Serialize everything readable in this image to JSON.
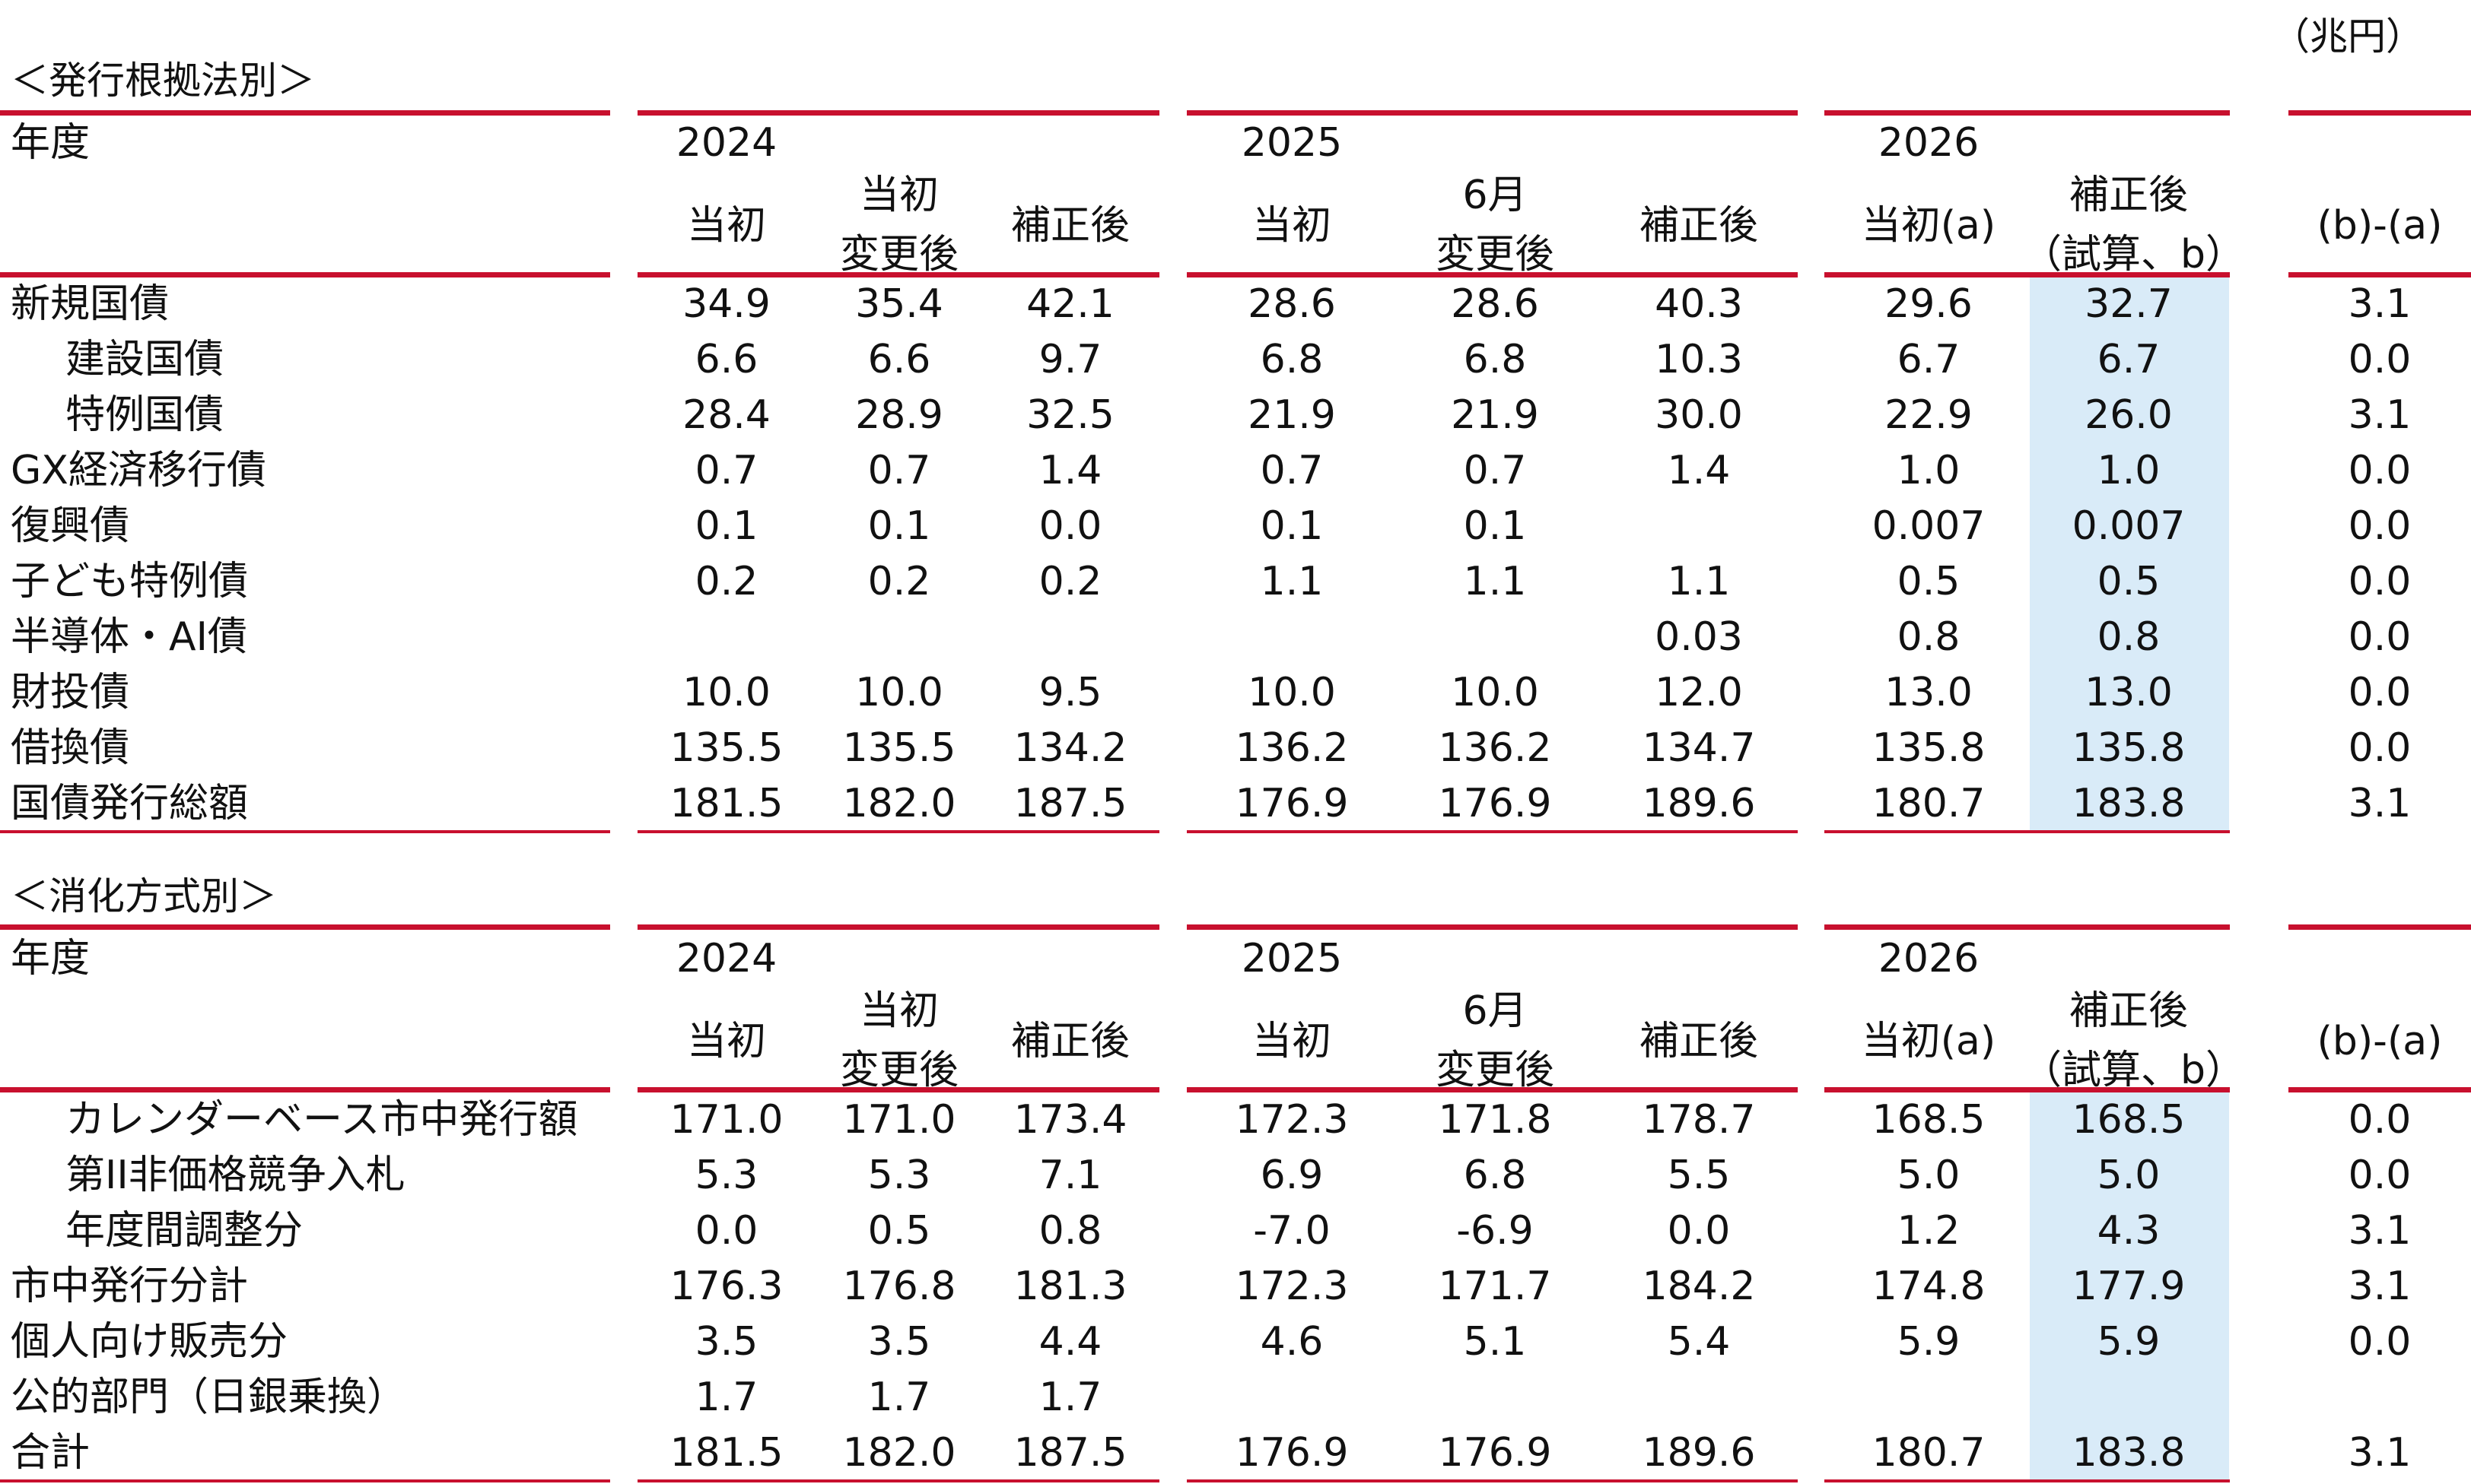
{
  "unit": "（兆円）",
  "tables": [
    {
      "title": "＜発行根拠法別＞",
      "year_label": "年度",
      "years": [
        "2024",
        "2025",
        "2026"
      ],
      "columns": [
        {
          "top": "当初",
          "bottom": ""
        },
        {
          "top": "当初",
          "bottom": "変更後"
        },
        {
          "top": "補正後",
          "bottom": ""
        },
        {
          "top": "当初",
          "bottom": ""
        },
        {
          "top": "6月",
          "bottom": "変更後"
        },
        {
          "top": "補正後",
          "bottom": ""
        },
        {
          "top": "当初(a)",
          "bottom": ""
        },
        {
          "top": "補正後",
          "bottom": "（試算、b）"
        },
        {
          "top": "(b)-(a)",
          "bottom": ""
        }
      ],
      "rows": [
        {
          "label": "新規国債",
          "indent": false,
          "values": [
            "34.9",
            "35.4",
            "42.1",
            "28.6",
            "28.6",
            "40.3",
            "29.6",
            "32.7",
            "3.1"
          ]
        },
        {
          "label": "建設国債",
          "indent": true,
          "values": [
            "6.6",
            "6.6",
            "9.7",
            "6.8",
            "6.8",
            "10.3",
            "6.7",
            "6.7",
            "0.0"
          ]
        },
        {
          "label": "特例国債",
          "indent": true,
          "values": [
            "28.4",
            "28.9",
            "32.5",
            "21.9",
            "21.9",
            "30.0",
            "22.9",
            "26.0",
            "3.1"
          ]
        },
        {
          "label": "GX経済移行債",
          "indent": false,
          "values": [
            "0.7",
            "0.7",
            "1.4",
            "0.7",
            "0.7",
            "1.4",
            "1.0",
            "1.0",
            "0.0"
          ]
        },
        {
          "label": "復興債",
          "indent": false,
          "values": [
            "0.1",
            "0.1",
            "0.0",
            "0.1",
            "0.1",
            "",
            "0.007",
            "0.007",
            "0.0"
          ]
        },
        {
          "label": "子ども特例債",
          "indent": false,
          "values": [
            "0.2",
            "0.2",
            "0.2",
            "1.1",
            "1.1",
            "1.1",
            "0.5",
            "0.5",
            "0.0"
          ]
        },
        {
          "label": "半導体・AI債",
          "indent": false,
          "values": [
            "",
            "",
            "",
            "",
            "",
            "0.03",
            "0.8",
            "0.8",
            "0.0"
          ]
        },
        {
          "label": "財投債",
          "indent": false,
          "values": [
            "10.0",
            "10.0",
            "9.5",
            "10.0",
            "10.0",
            "12.0",
            "13.0",
            "13.0",
            "0.0"
          ]
        },
        {
          "label": "借換債",
          "indent": false,
          "values": [
            "135.5",
            "135.5",
            "134.2",
            "136.2",
            "136.2",
            "134.7",
            "135.8",
            "135.8",
            "0.0"
          ]
        },
        {
          "label": "国債発行総額",
          "indent": false,
          "values": [
            "181.5",
            "182.0",
            "187.5",
            "176.9",
            "176.9",
            "189.6",
            "180.7",
            "183.8",
            "3.1"
          ]
        }
      ]
    },
    {
      "title": "＜消化方式別＞",
      "year_label": "年度",
      "years": [
        "2024",
        "2025",
        "2026"
      ],
      "columns": [
        {
          "top": "当初",
          "bottom": ""
        },
        {
          "top": "当初",
          "bottom": "変更後"
        },
        {
          "top": "補正後",
          "bottom": ""
        },
        {
          "top": "当初",
          "bottom": ""
        },
        {
          "top": "6月",
          "bottom": "変更後"
        },
        {
          "top": "補正後",
          "bottom": ""
        },
        {
          "top": "当初(a)",
          "bottom": ""
        },
        {
          "top": "補正後",
          "bottom": "（試算、b）"
        },
        {
          "top": "(b)-(a)",
          "bottom": ""
        }
      ],
      "rows": [
        {
          "label": "カレンダーベース市中発行額",
          "indent": true,
          "values": [
            "171.0",
            "171.0",
            "173.4",
            "172.3",
            "171.8",
            "178.7",
            "168.5",
            "168.5",
            "0.0"
          ]
        },
        {
          "label": "第II非価格競争入札",
          "indent": true,
          "values": [
            "5.3",
            "5.3",
            "7.1",
            "6.9",
            "6.8",
            "5.5",
            "5.0",
            "5.0",
            "0.0"
          ]
        },
        {
          "label": "年度間調整分",
          "indent": true,
          "values": [
            "0.0",
            "0.5",
            "0.8",
            "-7.0",
            "-6.9",
            "0.0",
            "1.2",
            "4.3",
            "3.1"
          ]
        },
        {
          "label": "市中発行分計",
          "indent": false,
          "values": [
            "176.3",
            "176.8",
            "181.3",
            "172.3",
            "171.7",
            "184.2",
            "174.8",
            "177.9",
            "3.1"
          ]
        },
        {
          "label": "個人向け販売分",
          "indent": false,
          "values": [
            "3.5",
            "3.5",
            "4.4",
            "4.6",
            "5.1",
            "5.4",
            "5.9",
            "5.9",
            "0.0"
          ]
        },
        {
          "label": "公的部門（日銀乗換）",
          "indent": false,
          "values": [
            "1.7",
            "1.7",
            "1.7",
            "",
            "",
            "",
            "",
            "",
            ""
          ]
        },
        {
          "label": "合計",
          "indent": false,
          "values": [
            "181.5",
            "182.0",
            "187.5",
            "176.9",
            "176.9",
            "189.6",
            "180.7",
            "183.8",
            "3.1"
          ]
        }
      ]
    }
  ]
}
